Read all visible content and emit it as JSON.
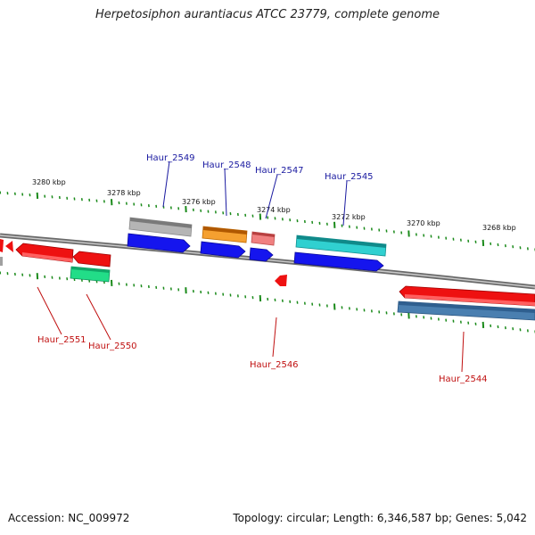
{
  "title": "Herpetosiphon aurantiacus ATCC 23779, complete genome",
  "footer": {
    "accession": "Accession: NC_009972",
    "summary": "Topology: circular; Length: 6,346,587 bp; Genes: 5,042"
  },
  "colors": {
    "backbone": "#8a8a8a",
    "tick": "#1a8a1a",
    "label_forward": "#1a1aa0",
    "label_reverse": "#c01010"
  },
  "scale_labels": [
    "3280 kbp",
    "3278 kbp",
    "3276 kbp",
    "3274 kbp",
    "3272 kbp",
    "3270 kbp",
    "3268 kbp"
  ],
  "genes": [
    {
      "name": "Haur_2549",
      "color": "#b5b5b5",
      "track": "outer-forward"
    },
    {
      "name": "Haur_2548",
      "color": "#f08c00",
      "track": "outer-forward"
    },
    {
      "name": "Haur_2547",
      "color": "#f08080",
      "track": "outer-forward"
    },
    {
      "name": "Haur_2545",
      "color": "#20c0c0",
      "track": "outer-forward"
    },
    {
      "name": "Haur_2546",
      "color": "#ee1111",
      "track": "inner-reverse"
    },
    {
      "name": "Haur_2551",
      "color": "#ee1111",
      "track": "inner-reverse"
    },
    {
      "name": "Haur_2550",
      "color": "#22dd88",
      "track": "outer-reverse"
    },
    {
      "name": "Haur_2544",
      "color": "#4a7fb0",
      "track": "outer-reverse"
    }
  ]
}
